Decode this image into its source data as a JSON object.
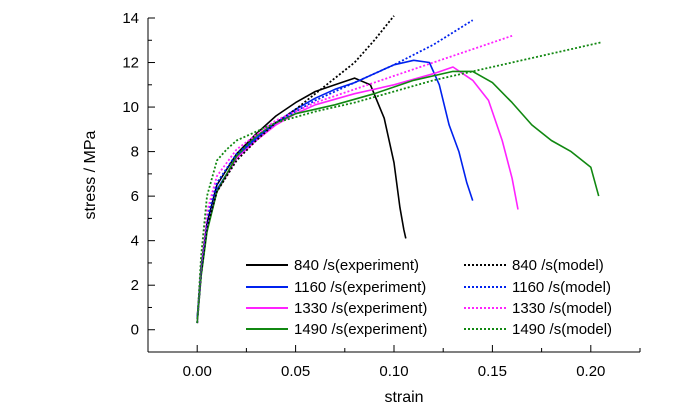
{
  "chart_data": {
    "type": "line",
    "title": "",
    "xlabel": "strain",
    "ylabel": "stress / MPa",
    "xlim": [
      -0.025,
      0.225
    ],
    "ylim": [
      -1.0,
      14.0
    ],
    "x_ticks": [
      0.0,
      0.05,
      0.1,
      0.15,
      0.2
    ],
    "x_tick_labels": [
      "0.00",
      "0.05",
      "0.10",
      "0.15",
      "0.20"
    ],
    "y_ticks": [
      0,
      2,
      4,
      6,
      8,
      10,
      12,
      14
    ],
    "y_tick_labels": [
      "0",
      "2",
      "4",
      "6",
      "8",
      "10",
      "12",
      "14"
    ],
    "grid": false,
    "legend_position": "bottom-right",
    "series": [
      {
        "name": "840 /s(experiment)",
        "color": "#000000",
        "style": "solid",
        "x": [
          0.0,
          0.002,
          0.005,
          0.01,
          0.02,
          0.03,
          0.04,
          0.05,
          0.06,
          0.07,
          0.08,
          0.088,
          0.095,
          0.1,
          0.103,
          0.105,
          0.106
        ],
        "y": [
          0.5,
          2.8,
          4.8,
          6.5,
          7.9,
          8.8,
          9.6,
          10.2,
          10.7,
          11.0,
          11.3,
          11.0,
          9.5,
          7.5,
          5.5,
          4.5,
          4.1
        ]
      },
      {
        "name": "1160 /s(experiment)",
        "color": "#0022ee",
        "style": "solid",
        "x": [
          0.0,
          0.002,
          0.005,
          0.01,
          0.02,
          0.03,
          0.04,
          0.05,
          0.06,
          0.07,
          0.08,
          0.09,
          0.1,
          0.11,
          0.118,
          0.123,
          0.128,
          0.133,
          0.137,
          0.14
        ],
        "y": [
          0.5,
          2.6,
          4.6,
          6.3,
          7.7,
          8.6,
          9.3,
          9.9,
          10.4,
          10.8,
          11.1,
          11.5,
          11.9,
          12.1,
          12.0,
          11.0,
          9.2,
          8.0,
          6.6,
          5.8
        ]
      },
      {
        "name": "1330 /s(experiment)",
        "color": "#ff22ff",
        "style": "solid",
        "x": [
          0.0,
          0.002,
          0.005,
          0.01,
          0.02,
          0.03,
          0.04,
          0.05,
          0.06,
          0.08,
          0.1,
          0.12,
          0.13,
          0.14,
          0.148,
          0.155,
          0.16,
          0.163
        ],
        "y": [
          0.3,
          2.5,
          4.5,
          6.2,
          7.7,
          8.5,
          9.2,
          9.7,
          10.1,
          10.6,
          11.0,
          11.5,
          11.8,
          11.2,
          10.3,
          8.5,
          6.8,
          5.4
        ]
      },
      {
        "name": "1490 /s(experiment)",
        "color": "#118811",
        "style": "solid",
        "x": [
          0.0,
          0.002,
          0.005,
          0.01,
          0.02,
          0.03,
          0.04,
          0.05,
          0.07,
          0.09,
          0.11,
          0.13,
          0.14,
          0.15,
          0.16,
          0.17,
          0.18,
          0.19,
          0.2,
          0.204
        ],
        "y": [
          0.3,
          2.4,
          4.4,
          6.2,
          7.8,
          8.7,
          9.3,
          9.7,
          10.1,
          10.6,
          11.2,
          11.6,
          11.6,
          11.1,
          10.2,
          9.2,
          8.5,
          8.0,
          7.3,
          6.0
        ]
      },
      {
        "name": "840 /s(model)",
        "color": "#000000",
        "style": "dotted",
        "x": [
          0.0,
          0.002,
          0.005,
          0.01,
          0.02,
          0.03,
          0.04,
          0.05,
          0.06,
          0.07,
          0.08,
          0.09,
          0.1
        ],
        "y": [
          0.3,
          2.5,
          4.6,
          6.2,
          7.6,
          8.5,
          9.3,
          9.9,
          10.6,
          11.3,
          12.0,
          13.0,
          14.1
        ]
      },
      {
        "name": "1160 /s(model)",
        "color": "#0022ee",
        "style": "dotted",
        "x": [
          0.0,
          0.002,
          0.005,
          0.01,
          0.02,
          0.04,
          0.06,
          0.08,
          0.1,
          0.12,
          0.14
        ],
        "y": [
          0.3,
          2.8,
          5.0,
          6.6,
          7.9,
          9.3,
          10.3,
          11.1,
          11.9,
          12.8,
          13.9
        ]
      },
      {
        "name": "1330 /s(model)",
        "color": "#ff22ff",
        "style": "dotted",
        "x": [
          0.0,
          0.002,
          0.005,
          0.01,
          0.02,
          0.04,
          0.06,
          0.08,
          0.1,
          0.12,
          0.14,
          0.16
        ],
        "y": [
          0.3,
          3.0,
          5.3,
          6.9,
          8.1,
          9.4,
          10.2,
          10.8,
          11.4,
          12.0,
          12.6,
          13.2
        ]
      },
      {
        "name": "1490 /s(model)",
        "color": "#118811",
        "style": "dotted",
        "x": [
          0.0,
          0.002,
          0.005,
          0.01,
          0.015,
          0.02,
          0.04,
          0.06,
          0.08,
          0.1,
          0.12,
          0.14,
          0.16,
          0.18,
          0.2,
          0.205
        ],
        "y": [
          0.3,
          3.3,
          6.0,
          7.6,
          8.1,
          8.5,
          9.3,
          9.8,
          10.2,
          10.7,
          11.2,
          11.6,
          12.0,
          12.4,
          12.8,
          12.9
        ]
      }
    ]
  }
}
